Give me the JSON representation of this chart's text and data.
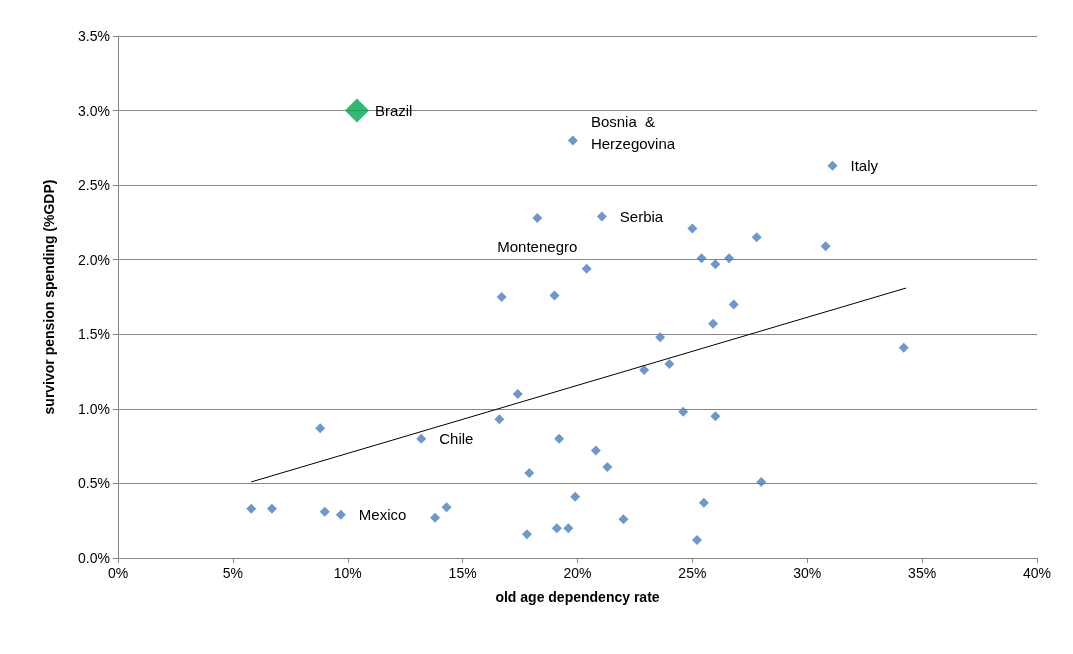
{
  "chart_data": {
    "type": "scatter",
    "xlabel": "old age dependency rate",
    "ylabel": "survivor pension spending (%GDP)",
    "xlim": [
      0,
      40
    ],
    "xticks": [
      {
        "value": 0,
        "label": "0%"
      },
      {
        "value": 5,
        "label": "5%"
      },
      {
        "value": 10,
        "label": "10%"
      },
      {
        "value": 15,
        "label": "15%"
      },
      {
        "value": 20,
        "label": "20%"
      },
      {
        "value": 25,
        "label": "25%"
      },
      {
        "value": 30,
        "label": "30%"
      },
      {
        "value": 35,
        "label": "35%"
      },
      {
        "value": 40,
        "label": "40%"
      }
    ],
    "ylim": [
      0,
      3.5
    ],
    "yticks": [
      {
        "value": 0,
        "label": "0.0%"
      },
      {
        "value": 0.5,
        "label": "0.5%"
      },
      {
        "value": 1,
        "label": "1.0%"
      },
      {
        "value": 1.5,
        "label": "1.5%"
      },
      {
        "value": 2,
        "label": "2.0%"
      },
      {
        "value": 2.5,
        "label": "2.5%"
      },
      {
        "value": 3,
        "label": "3.0%"
      },
      {
        "value": 3.5,
        "label": "3.5%"
      }
    ],
    "grid": "y",
    "series": [
      {
        "marker": "diamond",
        "color": "#4a7ebb",
        "x": [
          19.8,
          31.1,
          18.25,
          21.06,
          25.0,
          27.8,
          30.8,
          25.4,
          26.6,
          26.0,
          20.4,
          16.7,
          19.0,
          26.8,
          25.9,
          23.6,
          34.2,
          24.0,
          22.9,
          17.4,
          24.6,
          26.0,
          16.6,
          8.8,
          13.2,
          19.2,
          20.8,
          21.3,
          17.9,
          28.0,
          19.9,
          25.5,
          14.3,
          5.8,
          6.7,
          9.0,
          9.7,
          13.8,
          22.0,
          19.1,
          19.6,
          17.8,
          25.2
        ],
        "values": [
          2.8,
          2.63,
          2.28,
          2.29,
          2.21,
          2.15,
          2.09,
          2.01,
          2.01,
          1.97,
          1.94,
          1.75,
          1.76,
          1.7,
          1.57,
          1.48,
          1.41,
          1.3,
          1.26,
          1.1,
          0.98,
          0.95,
          0.93,
          0.87,
          0.8,
          0.8,
          0.72,
          0.61,
          0.57,
          0.51,
          0.41,
          0.37,
          0.34,
          0.33,
          0.33,
          0.31,
          0.29,
          0.27,
          0.26,
          0.2,
          0.2,
          0.16,
          0.12
        ]
      },
      {
        "marker": "diamond",
        "color": "#00a651",
        "x": [
          10.4
        ],
        "values": [
          3.0
        ]
      },
      {
        "type": "line",
        "marker": "none",
        "color": "#000000",
        "x": [
          5.8,
          34.3
        ],
        "values": [
          0.51,
          1.81
        ]
      }
    ],
    "annotations": [
      {
        "text": "Brazil",
        "x": 10.4,
        "y": 3.0
      },
      {
        "text": "Bosnia  &\nHerzegovina",
        "x": 19.8,
        "y": 2.8
      },
      {
        "text": "Italy",
        "x": 31.1,
        "y": 2.63
      },
      {
        "text": "Serbia",
        "x": 21.06,
        "y": 2.29
      },
      {
        "text": "Montenegro",
        "x": 18.25,
        "y": 2.28
      },
      {
        "text": "Chile",
        "x": 13.2,
        "y": 0.8
      },
      {
        "text": "Mexico",
        "x": 9.7,
        "y": 0.29
      }
    ]
  }
}
